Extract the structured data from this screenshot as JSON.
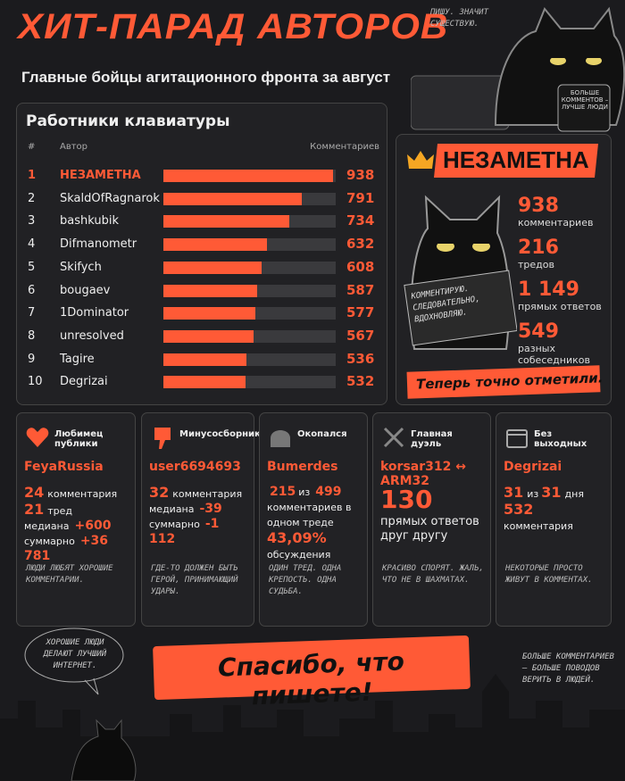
{
  "header": {
    "title": "ХИТ-ПАРАД АВТОРОВ",
    "subtitle": "Главные бойцы агитационного фронта за август"
  },
  "cat_note": "ПИШУ. ЗНАЧИТ СУЩЕСТВУЮ.",
  "mug": "БОЛЬШЕ КОММЕНТОВ – ЛУЧШЕ ЛЮДИ",
  "chart_data": {
    "type": "bar",
    "title": "Работники клавиатуры",
    "columns": [
      "#",
      "Автор",
      "Комментариев"
    ],
    "ranks": [
      1,
      2,
      3,
      4,
      5,
      6,
      7,
      8,
      9,
      10
    ],
    "categories": [
      "НЕЗАМЕТНА",
      "SkaldOfRagnarok",
      "bashkubik",
      "Difmanometr",
      "Skifych",
      "bougaev",
      "1Dominator",
      "unresolved",
      "Tagire",
      "Degrizai"
    ],
    "values": [
      938,
      791,
      734,
      632,
      608,
      587,
      577,
      567,
      536,
      532
    ],
    "color": "#ff5a36",
    "track_color": "#3a3a3d",
    "xlim": [
      150,
      950
    ]
  },
  "winner": {
    "name": "НЕЗАМЕТНА",
    "stats": [
      {
        "value": "938",
        "label": "комментариев"
      },
      {
        "value": "216",
        "label": "тредов"
      },
      {
        "value": "1 149",
        "label": "прямых ответов"
      },
      {
        "value": "549",
        "label": "разных собеседников"
      }
    ],
    "sign": "КОММЕНТИРУЮ. СЛЕДОВАТЕЛЬНО, ВДОХНОВЛЯЮ.",
    "banner": "Теперь точно отметили."
  },
  "cards": [
    {
      "title": "Любимец публики",
      "user": "FeyaRussia",
      "lines": [
        [
          {
            "num": "24"
          },
          {
            "text": "комментария"
          }
        ],
        [
          {
            "num": "21"
          },
          {
            "text": "тред"
          }
        ],
        [
          {
            "text": "медиана"
          },
          {
            "accent": "+600"
          }
        ],
        [
          {
            "text": "суммарно"
          },
          {
            "accent": "+36 781"
          }
        ]
      ],
      "note": "ЛЮДИ ЛЮБЯТ ХОРОШИЕ КОММЕНТАРИИ."
    },
    {
      "title": "Минусосборник",
      "user": "user6694693",
      "lines": [
        [
          {
            "num": "32"
          },
          {
            "text": "комментария"
          }
        ],
        [
          {
            "text": "медиана"
          },
          {
            "accent": "-39"
          }
        ],
        [
          {
            "text": "суммарно"
          },
          {
            "accent": "-1 112"
          }
        ]
      ],
      "note": "ГДЕ-ТО ДОЛЖЕН БЫТЬ ГЕРОЙ, ПРИНИМАЮЩИЙ УДАРЫ."
    },
    {
      "title": "Окопался",
      "user": "Bumerdes",
      "lines": [
        [
          {
            "accent": "215"
          },
          {
            "text": "из"
          },
          {
            "accent": "499"
          }
        ],
        [
          {
            "text": "комментариев в одном треде"
          }
        ],
        [
          {
            "num": "43,09%"
          }
        ],
        [
          {
            "text": "обсуждения"
          }
        ]
      ],
      "note": "ОДИН ТРЕД. ОДНА КРЕПОСТЬ. ОДНА СУДЬБА."
    },
    {
      "title": "Главная дуэль",
      "user": "korsar312 ↔ ARM32",
      "lines": [
        [
          {
            "big": "130"
          }
        ],
        [
          {
            "wide": "прямых ответов друг другу"
          }
        ]
      ],
      "note": "КРАСИВО СПОРЯТ. ЖАЛЬ, ЧТО НЕ В ШАХМАТАХ."
    },
    {
      "title": "Без выходных",
      "user": "Degrizai",
      "lines": [
        [
          {
            "num": "31"
          },
          {
            "text": "из"
          },
          {
            "num": "31"
          },
          {
            "text": "дня"
          }
        ],
        [
          {
            "num": "532"
          }
        ],
        [
          {
            "text": "комментария"
          }
        ]
      ],
      "note": "НЕКОТОРЫЕ ПРОСТО ЖИВУТ В КОММЕНТАХ."
    }
  ],
  "footer": {
    "bubble": "ХОРОШИЕ ЛЮДИ ДЕЛАЮТ ЛУЧШИЙ ИНТЕРНЕТ.",
    "banner": "Спасибо, что пишете!",
    "note": "БОЛЬШЕ КОММЕНТАРИЕВ – БОЛЬШЕ ПОВОДОВ ВЕРИТЬ В ЛЮДЕЙ."
  }
}
